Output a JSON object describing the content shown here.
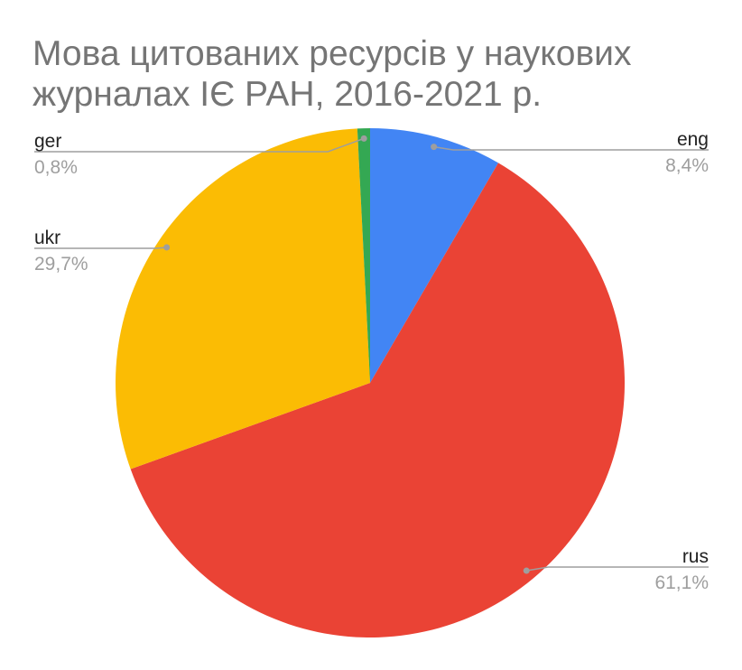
{
  "chart_data": {
    "type": "pie",
    "title": [
      "Мова цитованих ресурсів у наукових",
      "журналах ІЄ РАН, 2016-2021 р."
    ],
    "categories": [
      "eng",
      "rus",
      "ukr",
      "ger"
    ],
    "values": [
      8.4,
      61.1,
      29.7,
      0.8
    ],
    "value_labels": [
      "8,4%",
      "61,1%",
      "29,7%",
      "0,8%"
    ],
    "colors": [
      "#4285f4",
      "#ea4335",
      "#fbbc04",
      "#34a853"
    ]
  }
}
